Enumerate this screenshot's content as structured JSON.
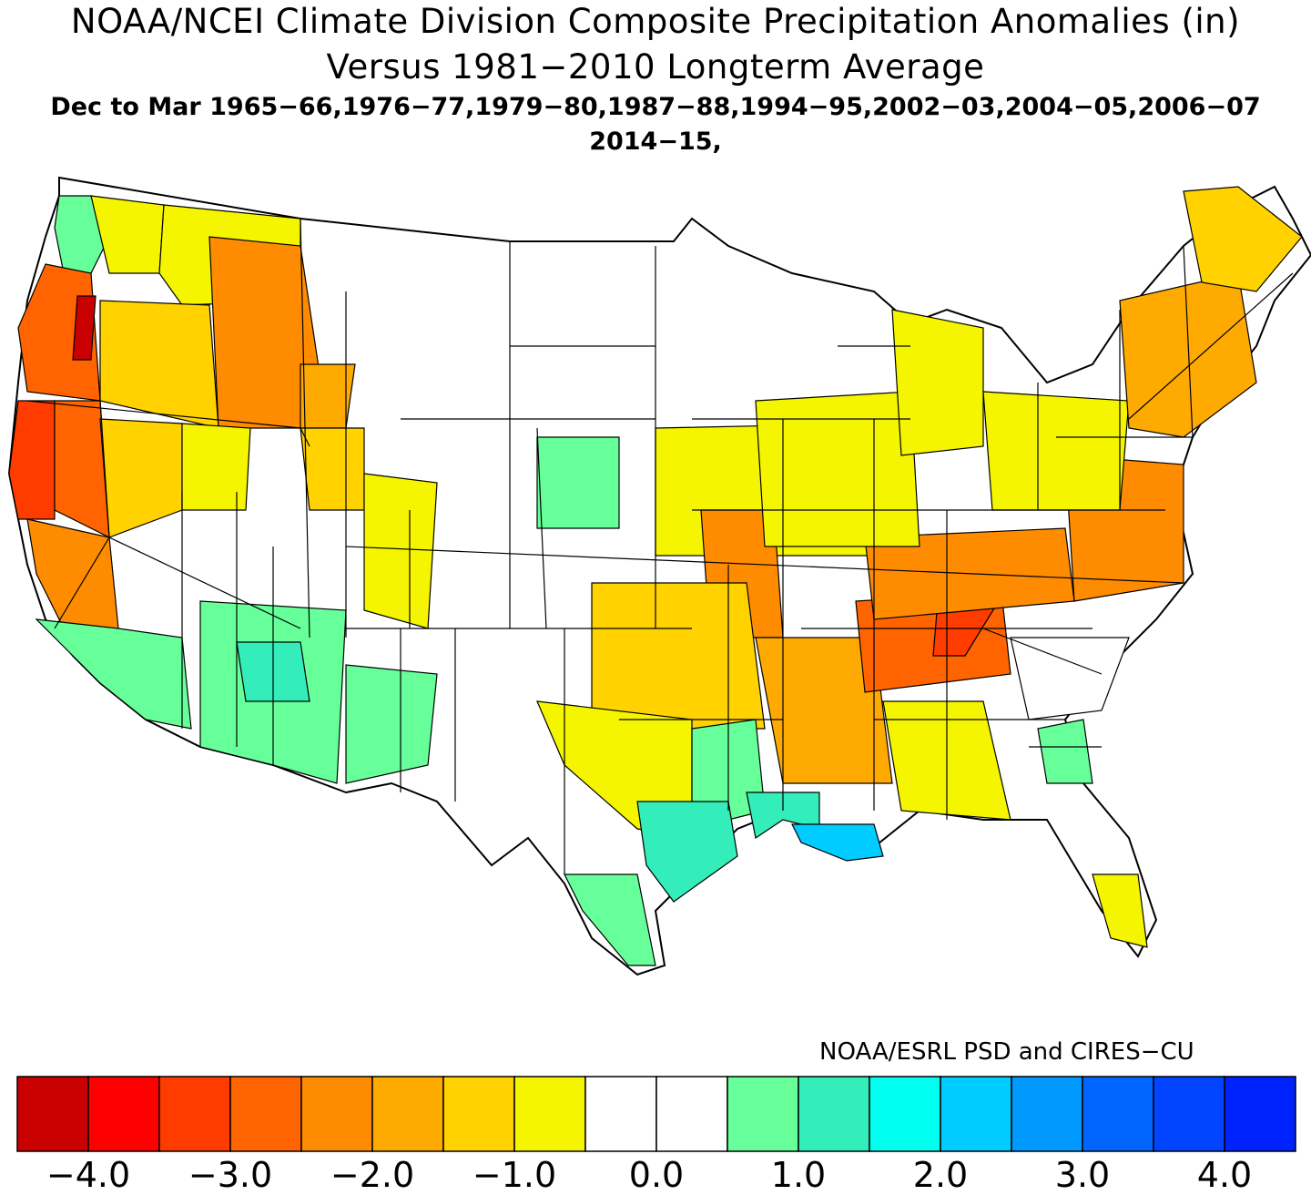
{
  "title": {
    "line1": "NOAA/NCEI Climate Division Composite Precipitation Anomalies (in)",
    "line2": "Versus 1981−2010 Longterm Average",
    "line3": "Dec to Mar  1965−66,1976−77,1979−80,1987−88,1994−95,2002−03,2004−05,2006−07",
    "line4": "2014−15,"
  },
  "credit": "NOAA/ESRL PSD and CIRES−CU",
  "colorbar": {
    "colors": [
      "#c80000",
      "#ff0000",
      "#ff3c00",
      "#ff6400",
      "#ff8c00",
      "#ffaa00",
      "#ffd200",
      "#f5f500",
      "#ffffff",
      "#ffffff",
      "#66ff99",
      "#33eebb",
      "#00ffee",
      "#00ccff",
      "#0099ff",
      "#0066ff",
      "#0044ff",
      "#0022ff"
    ],
    "tick_labels": [
      "−4.0",
      "−3.0",
      "−2.0",
      "−1.0",
      "0.0",
      "1.0",
      "2.0",
      "3.0",
      "4.0"
    ]
  },
  "regions": [
    {
      "name": "Washington coast",
      "color": "#66ff99"
    },
    {
      "name": "Washington Cascades",
      "color": "#f5f500"
    },
    {
      "name": "Eastern Washington / Idaho",
      "color": "#f5f500"
    },
    {
      "name": "Oregon coast",
      "color": "#ff6400"
    },
    {
      "name": "Oregon Willamette",
      "color": "#c80000"
    },
    {
      "name": "Eastern Oregon",
      "color": "#ffd200"
    },
    {
      "name": "Idaho central",
      "color": "#ff8c00"
    },
    {
      "name": "Idaho east",
      "color": "#ffaa00"
    },
    {
      "name": "Northern California coast",
      "color": "#ff3c00"
    },
    {
      "name": "Sierra Nevada",
      "color": "#ff6400"
    },
    {
      "name": "Central California",
      "color": "#ff8c00"
    },
    {
      "name": "Nevada northwest",
      "color": "#ffd200"
    },
    {
      "name": "Nevada north central",
      "color": "#f5f500"
    },
    {
      "name": "Utah north",
      "color": "#ffd200"
    },
    {
      "name": "Utah east",
      "color": "#f5f500"
    },
    {
      "name": "Southern California",
      "color": "#66ff99"
    },
    {
      "name": "Arizona",
      "color": "#66ff99"
    },
    {
      "name": "Arizona northeast",
      "color": "#33eebb"
    },
    {
      "name": "New Mexico west",
      "color": "#66ff99"
    },
    {
      "name": "Nebraska panhandle",
      "color": "#66ff99"
    },
    {
      "name": "Iowa / Missouri",
      "color": "#f5f500"
    },
    {
      "name": "Missouri central",
      "color": "#ff8c00"
    },
    {
      "name": "Kansas east / Oklahoma",
      "color": "#ffd200"
    },
    {
      "name": "Texas central",
      "color": "#f5f500"
    },
    {
      "name": "Texas east",
      "color": "#66ff99"
    },
    {
      "name": "Texas south",
      "color": "#66ff99"
    },
    {
      "name": "Texas coast",
      "color": "#33eebb"
    },
    {
      "name": "Louisiana",
      "color": "#33eebb"
    },
    {
      "name": "Louisiana southeast",
      "color": "#00ccff"
    },
    {
      "name": "Arkansas / Mississippi",
      "color": "#ffaa00"
    },
    {
      "name": "Tennessee",
      "color": "#ff6400"
    },
    {
      "name": "Tennessee east",
      "color": "#ff3c00"
    },
    {
      "name": "Kentucky",
      "color": "#ff8c00"
    },
    {
      "name": "Virginia / West Virginia",
      "color": "#ff8c00"
    },
    {
      "name": "Illinois / Indiana",
      "color": "#f5f500"
    },
    {
      "name": "Michigan",
      "color": "#f5f500"
    },
    {
      "name": "Ohio / Pennsylvania",
      "color": "#f5f500"
    },
    {
      "name": "New York / New England",
      "color": "#ffaa00"
    },
    {
      "name": "Maine",
      "color": "#ffd200"
    },
    {
      "name": "Alabama / Georgia",
      "color": "#f5f500"
    },
    {
      "name": "Georgia central",
      "color": "#66ff99"
    },
    {
      "name": "Carolinas",
      "color": "#ffffff"
    },
    {
      "name": "Florida south",
      "color": "#f5f500"
    }
  ]
}
